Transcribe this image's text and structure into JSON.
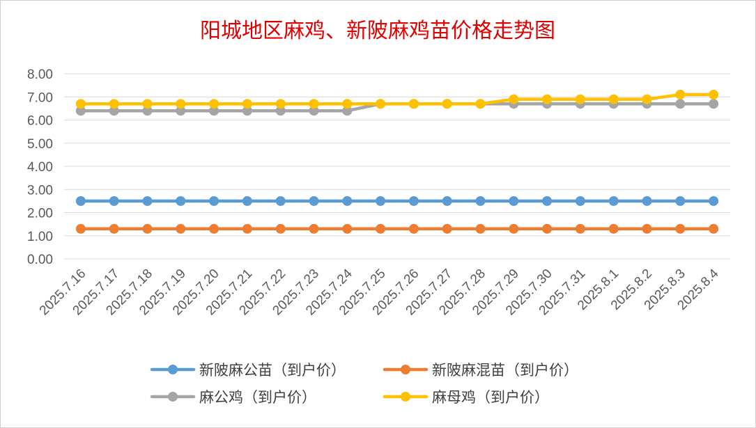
{
  "chart_data": {
    "type": "line",
    "title": "阳城地区麻鸡、新陂麻鸡苗价格走势图",
    "xlabel": "",
    "ylabel": "",
    "ylim": [
      0,
      8
    ],
    "y_ticks": [
      "0.00",
      "1.00",
      "2.00",
      "3.00",
      "4.00",
      "5.00",
      "6.00",
      "7.00",
      "8.00"
    ],
    "grid": true,
    "legend_position": "bottom",
    "categories": [
      "2025.7.16",
      "2025.7.17",
      "2025.7.18",
      "2025.7.19",
      "2025.7.20",
      "2025.7.21",
      "2025.7.22",
      "2025.7.23",
      "2025.7.24",
      "2025.7.25",
      "2025.7.26",
      "2025.7.27",
      "2025.7.28",
      "2025.7.29",
      "2025.7.30",
      "2025.7.31",
      "2025.8.1",
      "2025.8.2",
      "2025.8.3",
      "2025.8.4"
    ],
    "series": [
      {
        "name": "新陂麻公苗（到户价）",
        "color": "#5b9bd5",
        "values": [
          2.5,
          2.5,
          2.5,
          2.5,
          2.5,
          2.5,
          2.5,
          2.5,
          2.5,
          2.5,
          2.5,
          2.5,
          2.5,
          2.5,
          2.5,
          2.5,
          2.5,
          2.5,
          2.5,
          2.5
        ]
      },
      {
        "name": "新陂麻混苗（到户价）",
        "color": "#ed7d31",
        "values": [
          1.3,
          1.3,
          1.3,
          1.3,
          1.3,
          1.3,
          1.3,
          1.3,
          1.3,
          1.3,
          1.3,
          1.3,
          1.3,
          1.3,
          1.3,
          1.3,
          1.3,
          1.3,
          1.3,
          1.3
        ]
      },
      {
        "name": "麻公鸡（到户价）",
        "color": "#a5a5a5",
        "values": [
          6.4,
          6.4,
          6.4,
          6.4,
          6.4,
          6.4,
          6.4,
          6.4,
          6.4,
          6.7,
          6.7,
          6.7,
          6.7,
          6.7,
          6.7,
          6.7,
          6.7,
          6.7,
          6.7,
          6.7
        ]
      },
      {
        "name": "麻母鸡（到户价）",
        "color": "#ffc000",
        "values": [
          6.7,
          6.7,
          6.7,
          6.7,
          6.7,
          6.7,
          6.7,
          6.7,
          6.7,
          6.7,
          6.7,
          6.7,
          6.7,
          6.9,
          6.9,
          6.9,
          6.9,
          6.9,
          7.1,
          7.1
        ]
      }
    ]
  }
}
